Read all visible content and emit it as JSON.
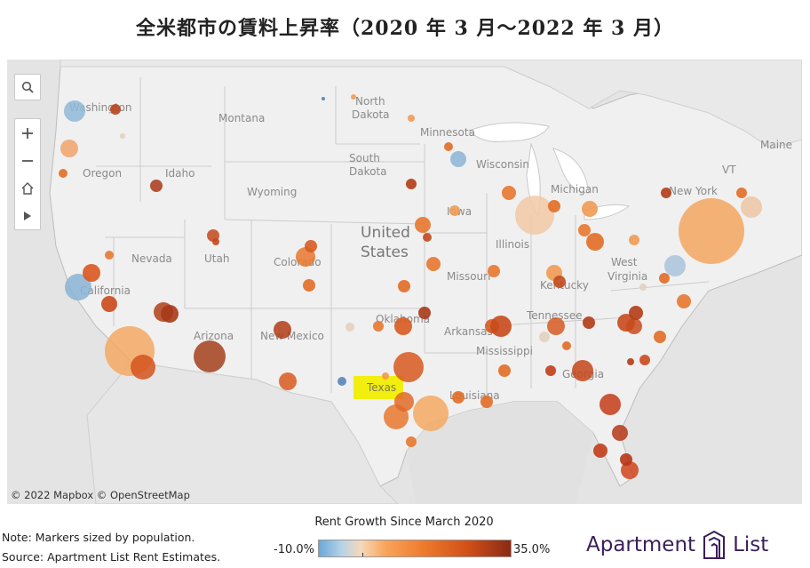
{
  "title": "全米都市の賃料上昇率（2020 年 3 月〜2022 年 3 月）",
  "map": {
    "attribution": "© 2022 Mapbox  © OpenStreetMap",
    "labels": [
      {
        "id": "washington",
        "text": "Washington"
      },
      {
        "id": "montana",
        "text": "Montana"
      },
      {
        "id": "north-dakota-1",
        "text": "North"
      },
      {
        "id": "north-dakota-2",
        "text": "Dakota"
      },
      {
        "id": "minnesota",
        "text": "Minnesota"
      },
      {
        "id": "oregon",
        "text": "Oregon"
      },
      {
        "id": "idaho",
        "text": "Idaho"
      },
      {
        "id": "south-dakota-1",
        "text": "South"
      },
      {
        "id": "south-dakota-2",
        "text": "Dakota"
      },
      {
        "id": "wisconsin",
        "text": "Wisconsin"
      },
      {
        "id": "michigan",
        "text": "Michigan"
      },
      {
        "id": "maine",
        "text": "Maine"
      },
      {
        "id": "vt",
        "text": "VT"
      },
      {
        "id": "wyoming",
        "text": "Wyoming"
      },
      {
        "id": "iowa",
        "text": "Iowa"
      },
      {
        "id": "new-york",
        "text": "New York"
      },
      {
        "id": "nevada",
        "text": "Nevada"
      },
      {
        "id": "utah",
        "text": "Utah"
      },
      {
        "id": "colorado",
        "text": "Colorado"
      },
      {
        "id": "us-1",
        "text": "United"
      },
      {
        "id": "us-2",
        "text": "States"
      },
      {
        "id": "illinois",
        "text": "Illinois"
      },
      {
        "id": "missouri",
        "text": "Missouri"
      },
      {
        "id": "west-virginia-1",
        "text": "West"
      },
      {
        "id": "west-virginia-2",
        "text": "Virginia"
      },
      {
        "id": "kentucky",
        "text": "Kentucky"
      },
      {
        "id": "california",
        "text": "California"
      },
      {
        "id": "arizona",
        "text": "Arizona"
      },
      {
        "id": "new-mexico",
        "text": "New Mexico"
      },
      {
        "id": "oklahoma",
        "text": "Oklahoma"
      },
      {
        "id": "tennessee",
        "text": "Tennessee"
      },
      {
        "id": "arkansas",
        "text": "Arkansas"
      },
      {
        "id": "mississippi",
        "text": "Mississippi"
      },
      {
        "id": "georgia",
        "text": "Georgia"
      },
      {
        "id": "louisiana",
        "text": "Louisiana"
      },
      {
        "id": "texas",
        "text": "Texas"
      }
    ],
    "highlight_label": "Texas",
    "size_encoding": "population",
    "color_encoding": "Rent Growth Since March 2020",
    "markers": [
      {
        "city": "Seattle area",
        "color": "#8fb8d8"
      },
      {
        "city": "Portland area",
        "color": "#f0a36a"
      },
      {
        "city": "Boise",
        "color": "#a83816"
      },
      {
        "city": "Salt Lake City",
        "color": "#c2491c"
      },
      {
        "city": "Denver",
        "color": "#e8772e"
      },
      {
        "city": "San Francisco",
        "color": "#8ab4d4"
      },
      {
        "city": "Los Angeles",
        "color": "#f5a863"
      },
      {
        "city": "San Diego",
        "color": "#d4531c"
      },
      {
        "city": "Phoenix",
        "color": "#a5401c"
      },
      {
        "city": "Las Vegas",
        "color": "#b2401a"
      },
      {
        "city": "Albuquerque",
        "color": "#b23c16"
      },
      {
        "city": "El Paso",
        "color": "#d85a20"
      },
      {
        "city": "Dallas",
        "color": "#d8581e"
      },
      {
        "city": "Houston",
        "color": "#f5a862"
      },
      {
        "city": "San Antonio",
        "color": "#e8772e"
      },
      {
        "city": "Austin",
        "color": "#e06a28"
      },
      {
        "city": "Chicago",
        "color": "#f2c9a6"
      },
      {
        "city": "New York",
        "color": "#f5a660"
      },
      {
        "city": "Boston",
        "color": "#ecc5a4"
      },
      {
        "city": "Washington DC",
        "color": "#a9c3dc"
      },
      {
        "city": "Atlanta",
        "color": "#c3451a"
      },
      {
        "city": "Tampa",
        "color": "#c23c18"
      },
      {
        "city": "Miami",
        "color": "#d0451c"
      },
      {
        "city": "Orlando",
        "color": "#b63616"
      },
      {
        "city": "Nashville",
        "color": "#d65a22"
      },
      {
        "city": "Charlotte",
        "color": "#c84a1c"
      },
      {
        "city": "Minneapolis",
        "color": "#8cb4d6"
      },
      {
        "city": "Midland TX",
        "color": "#4f7fb8"
      }
    ]
  },
  "legend": {
    "title": "Rent Growth Since March 2020",
    "min": "-10.0%",
    "max": "35.0%",
    "colors": [
      "#6aa8d8",
      "#f6d8b8",
      "#f9a35a",
      "#cf4f18",
      "#8a2a14"
    ]
  },
  "notes": {
    "line1": "Note: Markers sized by population.",
    "line2": "Source: Apartment List Rent Estimates."
  },
  "brand": {
    "part1": "Apartment",
    "part2": "List",
    "color": "#3b1e5a"
  },
  "controls": {
    "search_icon": "search-icon",
    "zoom_in_icon": "plus-icon",
    "zoom_out_icon": "minus-icon",
    "home_icon": "home-icon",
    "expand_icon": "play-icon"
  }
}
